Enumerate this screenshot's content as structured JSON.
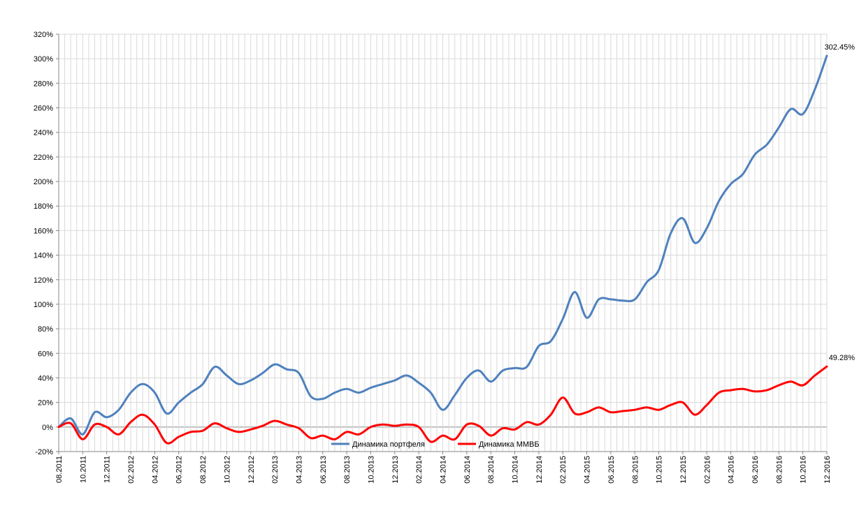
{
  "chart_data": {
    "type": "line",
    "title": "",
    "xlabel": "",
    "ylabel": "",
    "y_unit": "%",
    "ylim": [
      -20,
      320
    ],
    "y_ticks": [
      -20,
      0,
      20,
      40,
      60,
      80,
      100,
      120,
      140,
      160,
      180,
      200,
      220,
      240,
      260,
      280,
      300,
      320
    ],
    "y_tick_labels": [
      "-20%",
      "0%",
      "20%",
      "40%",
      "60%",
      "80%",
      "100%",
      "120%",
      "140%",
      "160%",
      "180%",
      "200%",
      "220%",
      "240%",
      "260%",
      "280%",
      "300%",
      "320%"
    ],
    "x_range": [
      "2011-08",
      "2016-12"
    ],
    "x_ticks": [
      "08.2011",
      "10.2011",
      "12.2011",
      "02.2012",
      "04.2012",
      "06.2012",
      "08.2012",
      "10.2012",
      "12.2012",
      "02.2013",
      "04.2013",
      "06.2013",
      "08.2013",
      "10.2013",
      "12.2013",
      "02.2014",
      "04.2014",
      "06.2014",
      "08.2014",
      "10.2014",
      "12.2014",
      "02.2015",
      "04.2015",
      "06.2015",
      "08.2015",
      "10.2015",
      "12.2015",
      "02.2016",
      "04.2016",
      "06.2016",
      "08.2016",
      "10.2016",
      "12.2016"
    ],
    "grid": true,
    "legend_position": "bottom",
    "series": [
      {
        "name": "Динамика портфеля",
        "color": "#4f81bd",
        "end_label": "302.45%",
        "points": [
          [
            "2011-08",
            0
          ],
          [
            "2011-09",
            7
          ],
          [
            "2011-10",
            -6
          ],
          [
            "2011-11",
            12
          ],
          [
            "2011-12",
            8
          ],
          [
            "2012-01",
            14
          ],
          [
            "2012-02",
            28
          ],
          [
            "2012-03",
            35
          ],
          [
            "2012-04",
            28
          ],
          [
            "2012-05",
            11
          ],
          [
            "2012-06",
            20
          ],
          [
            "2012-07",
            28
          ],
          [
            "2012-08",
            35
          ],
          [
            "2012-09",
            49
          ],
          [
            "2012-10",
            42
          ],
          [
            "2012-11",
            35
          ],
          [
            "2012-12",
            38
          ],
          [
            "2013-01",
            44
          ],
          [
            "2013-02",
            51
          ],
          [
            "2013-03",
            47
          ],
          [
            "2013-04",
            44
          ],
          [
            "2013-05",
            25
          ],
          [
            "2013-06",
            23
          ],
          [
            "2013-07",
            28
          ],
          [
            "2013-08",
            31
          ],
          [
            "2013-09",
            28
          ],
          [
            "2013-10",
            32
          ],
          [
            "2013-11",
            35
          ],
          [
            "2013-12",
            38
          ],
          [
            "2014-01",
            42
          ],
          [
            "2014-02",
            36
          ],
          [
            "2014-03",
            28
          ],
          [
            "2014-04",
            14
          ],
          [
            "2014-05",
            26
          ],
          [
            "2014-06",
            40
          ],
          [
            "2014-07",
            46
          ],
          [
            "2014-08",
            37
          ],
          [
            "2014-09",
            46
          ],
          [
            "2014-10",
            48
          ],
          [
            "2014-11",
            49
          ],
          [
            "2014-12",
            66
          ],
          [
            "2015-01",
            70
          ],
          [
            "2015-02",
            88
          ],
          [
            "2015-03",
            110
          ],
          [
            "2015-04",
            89
          ],
          [
            "2015-05",
            104
          ],
          [
            "2015-06",
            104
          ],
          [
            "2015-07",
            103
          ],
          [
            "2015-08",
            104
          ],
          [
            "2015-09",
            118
          ],
          [
            "2015-10",
            128
          ],
          [
            "2015-11",
            158
          ],
          [
            "2015-12",
            170
          ],
          [
            "2016-01",
            150
          ],
          [
            "2016-02",
            162
          ],
          [
            "2016-03",
            184
          ],
          [
            "2016-04",
            198
          ],
          [
            "2016-05",
            206
          ],
          [
            "2016-06",
            222
          ],
          [
            "2016-07",
            230
          ],
          [
            "2016-08",
            244
          ],
          [
            "2016-09",
            259
          ],
          [
            "2016-10",
            255
          ],
          [
            "2016-11",
            275
          ],
          [
            "2016-12",
            302.45
          ]
        ]
      },
      {
        "name": "Динамика ММВБ",
        "color": "#ff0000",
        "end_label": "49.28%",
        "points": [
          [
            "2011-08",
            0
          ],
          [
            "2011-09",
            3
          ],
          [
            "2011-10",
            -10
          ],
          [
            "2011-11",
            2
          ],
          [
            "2011-12",
            0
          ],
          [
            "2012-01",
            -6
          ],
          [
            "2012-02",
            4
          ],
          [
            "2012-03",
            10
          ],
          [
            "2012-04",
            2
          ],
          [
            "2012-05",
            -13
          ],
          [
            "2012-06",
            -8
          ],
          [
            "2012-07",
            -4
          ],
          [
            "2012-08",
            -3
          ],
          [
            "2012-09",
            3
          ],
          [
            "2012-10",
            -1
          ],
          [
            "2012-11",
            -4
          ],
          [
            "2012-12",
            -2
          ],
          [
            "2013-01",
            1
          ],
          [
            "2013-02",
            5
          ],
          [
            "2013-03",
            2
          ],
          [
            "2013-04",
            -1
          ],
          [
            "2013-05",
            -9
          ],
          [
            "2013-06",
            -7
          ],
          [
            "2013-07",
            -10
          ],
          [
            "2013-08",
            -4
          ],
          [
            "2013-09",
            -6
          ],
          [
            "2013-10",
            0
          ],
          [
            "2013-11",
            2
          ],
          [
            "2013-12",
            1
          ],
          [
            "2014-01",
            2
          ],
          [
            "2014-02",
            0
          ],
          [
            "2014-03",
            -12
          ],
          [
            "2014-04",
            -7
          ],
          [
            "2014-05",
            -10
          ],
          [
            "2014-06",
            2
          ],
          [
            "2014-07",
            1
          ],
          [
            "2014-08",
            -7
          ],
          [
            "2014-09",
            -1
          ],
          [
            "2014-10",
            -2
          ],
          [
            "2014-11",
            4
          ],
          [
            "2014-12",
            2
          ],
          [
            "2015-01",
            10
          ],
          [
            "2015-02",
            24
          ],
          [
            "2015-03",
            11
          ],
          [
            "2015-04",
            12
          ],
          [
            "2015-05",
            16
          ],
          [
            "2015-06",
            12
          ],
          [
            "2015-07",
            13
          ],
          [
            "2015-08",
            14
          ],
          [
            "2015-09",
            16
          ],
          [
            "2015-10",
            14
          ],
          [
            "2015-11",
            18
          ],
          [
            "2015-12",
            20
          ],
          [
            "2016-01",
            10
          ],
          [
            "2016-02",
            18
          ],
          [
            "2016-03",
            28
          ],
          [
            "2016-04",
            30
          ],
          [
            "2016-05",
            31
          ],
          [
            "2016-06",
            29
          ],
          [
            "2016-07",
            30
          ],
          [
            "2016-08",
            34
          ],
          [
            "2016-09",
            37
          ],
          [
            "2016-10",
            34
          ],
          [
            "2016-11",
            42
          ],
          [
            "2016-12",
            49.28
          ]
        ]
      }
    ]
  }
}
